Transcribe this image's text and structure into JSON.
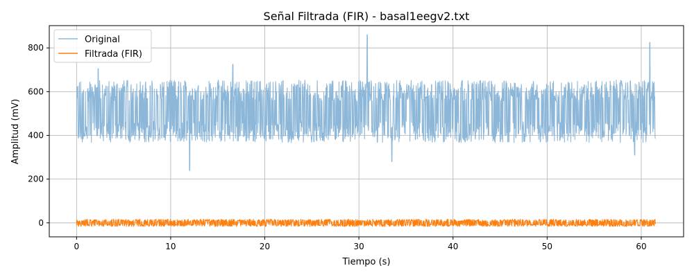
{
  "chart_data": {
    "type": "line",
    "title": "Señal Filtrada (FIR) - basal1eegv2.txt",
    "xlabel": "Tiempo (s)",
    "ylabel": "Amplitud (mV)",
    "xlim": [
      -2.9,
      64.5
    ],
    "ylim": [
      -64,
      902
    ],
    "xticks": [
      0,
      10,
      20,
      30,
      40,
      50,
      60
    ],
    "yticks": [
      0,
      200,
      400,
      600,
      800
    ],
    "grid": true,
    "legend_position": "top-left",
    "x_range": [
      0,
      61.5
    ],
    "series": [
      {
        "name": "Original",
        "color": "#8db7d9",
        "baseline": 510,
        "typical_band": [
          380,
          640
        ],
        "peaks": [
          {
            "x": 12.0,
            "y": 240
          },
          {
            "x": 30.9,
            "y": 860
          },
          {
            "x": 60.9,
            "y": 825
          },
          {
            "x": 33.5,
            "y": 280
          },
          {
            "x": 59.3,
            "y": 310
          },
          {
            "x": 2.3,
            "y": 705
          },
          {
            "x": 16.6,
            "y": 725
          }
        ]
      },
      {
        "name": "Filtrada (FIR)",
        "color": "#ff7f0e",
        "baseline": 0,
        "typical_band": [
          -15,
          15
        ]
      }
    ]
  }
}
